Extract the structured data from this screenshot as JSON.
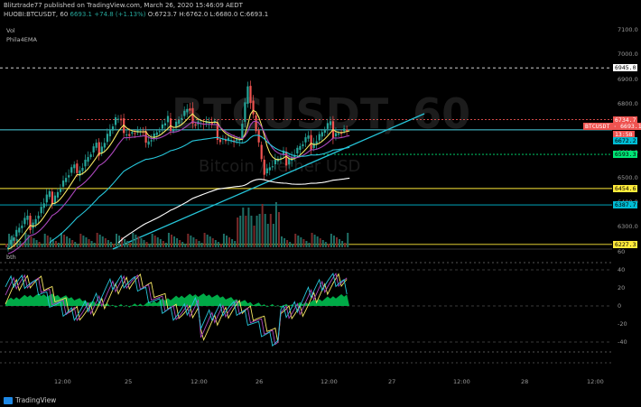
{
  "header": {
    "published_line": "Blitztrade77 published on TradingView.com, March 26, 2020 15:46:09 AEDT",
    "symbol_line": "HUOBI:BTCUSDT, 60",
    "last": "6693.1",
    "change": "+74.8 (+1.13%)",
    "ohlc": "O:6723.7 H:6762.0 L:6680.0 C:6693.1"
  },
  "studies": {
    "vol": "Vol",
    "ema": "Phila4EMA",
    "lower": "bth"
  },
  "watermark": {
    "symbol": "BTCUSDT, 60",
    "name": "Bitcoin / Tether USD"
  },
  "price_axis": [
    "7100.0",
    "7000.0",
    "6900.0",
    "6800.0",
    "6700.0",
    "6600.0",
    "6500.0",
    "6400.0",
    "6300.0"
  ],
  "osc_axis": [
    "60",
    "40",
    "20",
    "0",
    "-20",
    "-40"
  ],
  "time_axis": [
    "12:00",
    "25",
    "12:00",
    "26",
    "12:00",
    "27",
    "12:00",
    "28",
    "12:00"
  ],
  "tags": [
    {
      "text": "6945.0",
      "color": "#ffffff"
    },
    {
      "text": "6734.7",
      "color": "#ef5350"
    },
    {
      "text": "BTCUSDT · 6693.1",
      "color": "#ef5350"
    },
    {
      "text": "13:58",
      "color": "#ef5350"
    },
    {
      "text": "6672.2",
      "color": "#00bcd4"
    },
    {
      "text": "6593.3",
      "color": "#00e676"
    },
    {
      "text": "6454.6",
      "color": "#ffeb3b"
    },
    {
      "text": "6387.7",
      "color": "#00bcd4"
    },
    {
      "text": "6227.3",
      "color": "#ffeb3b"
    }
  ],
  "footer": {
    "brand": "TradingView"
  },
  "colors": {
    "up": "#26a69a",
    "down": "#ef5350",
    "osc": "#00e676"
  }
}
